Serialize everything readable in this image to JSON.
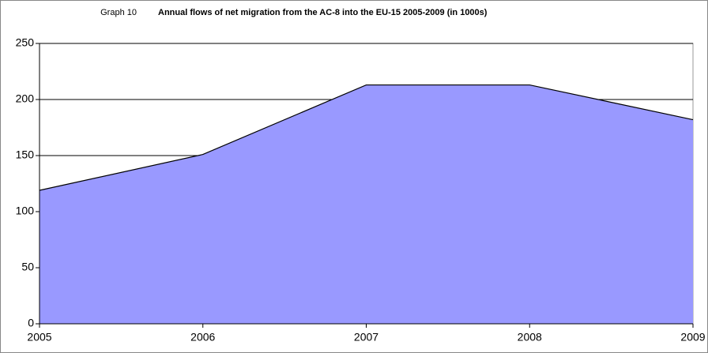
{
  "chart_data": {
    "type": "area",
    "figure_label": "Graph 10",
    "title": "Annual flows of net migration from the AC-8 into the EU-15 2005-2009 (in 1000s)",
    "x": [
      2005,
      2006,
      2007,
      2008,
      2009
    ],
    "series": [
      {
        "color": "#9999ff",
        "values": [
          119,
          151,
          213,
          213,
          182
        ]
      }
    ],
    "xlim": [
      2005,
      2009
    ],
    "xticks": [
      2005,
      2006,
      2007,
      2008,
      2009
    ],
    "ylim": [
      0,
      250
    ],
    "yticks": [
      0,
      50,
      100,
      150,
      200,
      250
    ],
    "grid": true
  }
}
